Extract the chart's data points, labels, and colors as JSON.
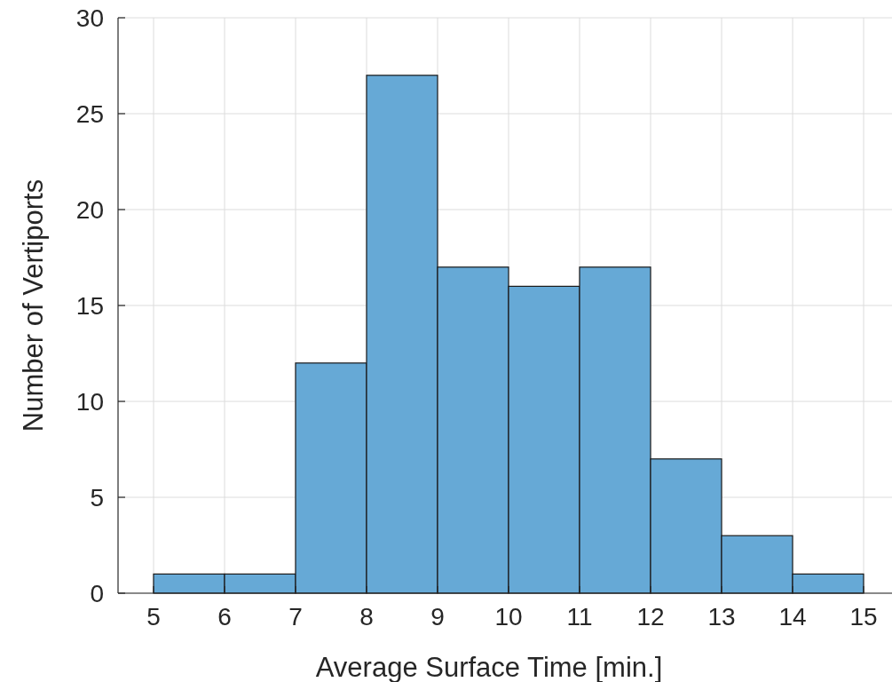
{
  "chart_data": {
    "type": "histogram",
    "xlabel": "Average Surface Time [min.]",
    "ylabel": "Number of Vertiports",
    "bins": [
      5,
      6,
      7,
      8,
      9,
      10,
      11,
      12,
      13,
      14,
      15
    ],
    "values": [
      1,
      1,
      12,
      27,
      17,
      16,
      17,
      7,
      3,
      1
    ],
    "color": "#66a9d6",
    "xlim": [
      4.5,
      15.4
    ],
    "xticks": [
      5,
      6,
      7,
      8,
      9,
      10,
      11,
      12,
      13,
      14,
      15
    ],
    "ylim": [
      0,
      30
    ],
    "yticks": [
      0,
      5,
      10,
      15,
      20,
      25,
      30
    ],
    "grid": true
  }
}
